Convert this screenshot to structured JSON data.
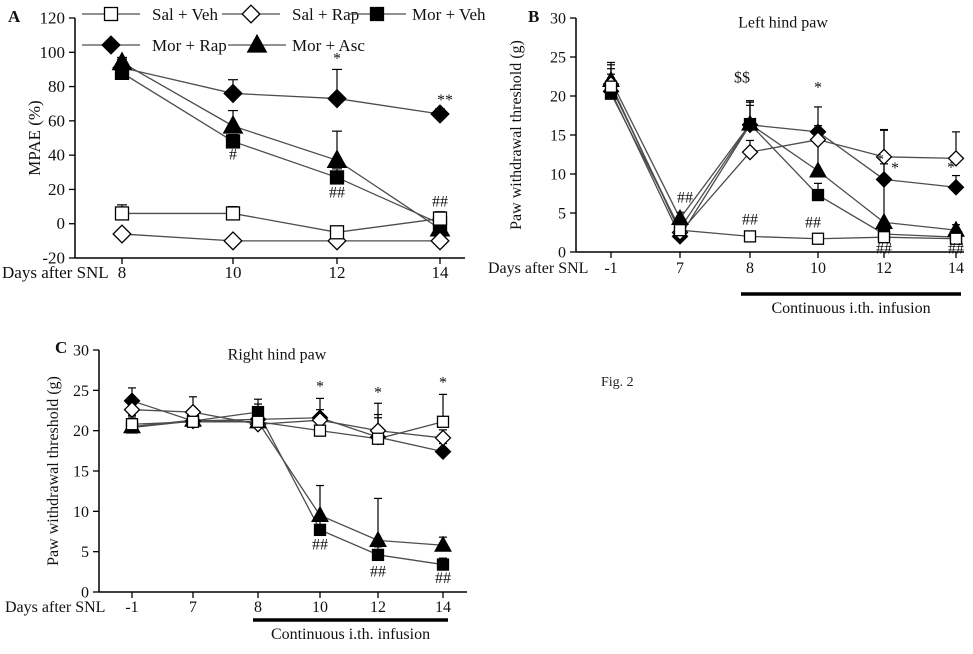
{
  "figure_label": "Fig. 2",
  "colors": {
    "axis": "#000000",
    "line": "#4d4d4d",
    "marker_fill": "#000000",
    "marker_open": "#ffffff",
    "text": "#111111"
  },
  "legend": {
    "rows": [
      [
        {
          "marker": "square-open",
          "label": "Sal + Veh"
        },
        {
          "marker": "diamond-open",
          "label": "Sal + Rap"
        },
        {
          "marker": "square-filled",
          "label": "Mor + Veh"
        }
      ],
      [
        {
          "marker": "diamond-filled",
          "label": "Mor + Rap"
        },
        {
          "marker": "triangle-filled",
          "label": "Mor + Asc"
        }
      ]
    ]
  },
  "chart_data": [
    {
      "id": "A",
      "type": "line",
      "panel_label": "A",
      "title": "",
      "xlabel": "Days after SNL",
      "ylabel": "MPAE (%)",
      "ylim": [
        -20,
        120
      ],
      "ytick_step": 20,
      "grid": false,
      "categories": [
        "8",
        "10",
        "12",
        "14"
      ],
      "series": [
        {
          "name": "Sal + Veh",
          "marker": "square-open",
          "values": [
            6,
            6,
            -5,
            3
          ],
          "err_up": [
            5,
            4,
            2,
            4
          ],
          "err_dn": [
            0,
            0,
            0,
            0
          ]
        },
        {
          "name": "Sal + Rap",
          "marker": "diamond-open",
          "values": [
            -6,
            -10,
            -10,
            -10
          ],
          "err_up": [
            2,
            1,
            1,
            1
          ],
          "err_dn": [
            2,
            0,
            0,
            0
          ]
        },
        {
          "name": "Mor + Veh",
          "marker": "square-filled",
          "values": [
            88,
            48,
            27,
            0
          ],
          "err_up": [
            4,
            4,
            5,
            3
          ],
          "err_dn": [
            0,
            0,
            0,
            0
          ]
        },
        {
          "name": "Mor + Rap",
          "marker": "diamond-filled",
          "values": [
            91,
            76,
            73,
            64
          ],
          "err_up": [
            5,
            8,
            17,
            3
          ],
          "err_dn": [
            0,
            0,
            0,
            0
          ]
        },
        {
          "name": "Mor + Asc",
          "marker": "triangle-filled",
          "values": [
            94,
            57,
            37,
            -3
          ],
          "err_up": [
            3,
            9,
            17,
            0
          ],
          "err_dn": [
            0,
            0,
            0,
            4
          ]
        }
      ],
      "annotations": [
        {
          "text": "*",
          "x": 2,
          "y": 96
        },
        {
          "text": "**",
          "x": 3,
          "y": 72,
          "dx": 5
        },
        {
          "text": "#",
          "x": 1,
          "y": 40
        },
        {
          "text": "##",
          "x": 2,
          "y": 18
        },
        {
          "text": "##",
          "x": 3,
          "y": 12.7
        }
      ]
    },
    {
      "id": "B",
      "type": "line",
      "panel_label": "B",
      "title": "Left hind paw",
      "xlabel": "Days after SNL",
      "ylabel": "Paw withdrawal threshold  (g)",
      "ylim": [
        0,
        30
      ],
      "ytick_step": 5,
      "grid": false,
      "categories": [
        "-1",
        "7",
        "8",
        "10",
        "12",
        "14"
      ],
      "series": [
        {
          "name": "Sal + Veh",
          "marker": "square-open",
          "values": [
            21.2,
            2.8,
            2.0,
            1.7,
            1.9,
            1.7
          ],
          "err_up": [
            2.3,
            0.6,
            0.4,
            0.4,
            0.4,
            0.4
          ],
          "err_dn": [
            0,
            0,
            0,
            0,
            0,
            0
          ]
        },
        {
          "name": "Sal + Rap",
          "marker": "diamond-open",
          "values": [
            21.5,
            2.5,
            12.8,
            14.4,
            12.2,
            12.0
          ],
          "err_up": [
            2.5,
            0.5,
            1.5,
            1.8,
            3.5,
            3.4
          ],
          "err_dn": [
            0,
            0,
            0,
            0,
            0,
            0
          ]
        },
        {
          "name": "Mor + Veh",
          "marker": "square-filled",
          "values": [
            20.3,
            3.0,
            16.4,
            7.3,
            2.3,
            1.9
          ],
          "err_up": [
            2.0,
            0.6,
            3.0,
            1.5,
            0.6,
            0.5
          ],
          "err_dn": [
            0,
            0,
            0,
            0,
            0,
            0
          ]
        },
        {
          "name": "Mor + Rap",
          "marker": "diamond-filled",
          "values": [
            20.6,
            2.0,
            16.3,
            15.4,
            9.3,
            8.3
          ],
          "err_up": [
            2.2,
            0.4,
            2.5,
            3.2,
            2.0,
            1.5
          ],
          "err_dn": [
            0,
            0,
            0,
            0,
            0,
            0
          ]
        },
        {
          "name": "Mor + Asc",
          "marker": "triangle-filled",
          "values": [
            22.0,
            4.3,
            16.4,
            10.4,
            3.8,
            2.8
          ],
          "err_up": [
            2.3,
            0.8,
            2.8,
            4.0,
            11.8,
            0.7
          ],
          "err_dn": [
            0,
            0,
            0,
            0,
            0,
            0
          ]
        }
      ],
      "annotations": [
        {
          "text": "##",
          "x": 1,
          "y": 6.9,
          "dx": 5
        },
        {
          "text": "$$",
          "x": 2,
          "y": 22.3,
          "dx": -8
        },
        {
          "text": "##",
          "x": 2,
          "y": 4.1
        },
        {
          "text": "*",
          "x": 3,
          "y": 21.0
        },
        {
          "text": "##",
          "x": 3,
          "y": 3.7,
          "dx": -5
        },
        {
          "text": "*",
          "x": 4,
          "y": 11.8,
          "dx": -4
        },
        {
          "text": "*",
          "x": 4,
          "y": 10.7,
          "dx": 11
        },
        {
          "text": "##",
          "x": 4,
          "y": 0.4
        },
        {
          "text": "*",
          "x": 5,
          "y": 10.8,
          "dx": -5
        },
        {
          "text": "##",
          "x": 5,
          "y": 0.4
        }
      ],
      "infusion": {
        "from": 2,
        "to": 5,
        "label": "Continuous  i.th.  infusion"
      }
    },
    {
      "id": "C",
      "type": "line",
      "panel_label": "C",
      "title": "Right  hind  paw",
      "xlabel": "Days after SNL",
      "ylabel": "Paw withdrawal  threshold  (g)",
      "ylim": [
        0,
        30
      ],
      "ytick_step": 5,
      "grid": false,
      "categories": [
        "-1",
        "7",
        "8",
        "10",
        "12",
        "14"
      ],
      "series": [
        {
          "name": "Sal + Veh",
          "marker": "square-open",
          "values": [
            20.8,
            21.1,
            21.1,
            20.0,
            19.0,
            21.1
          ],
          "err_up": [
            0.9,
            1.0,
            2.2,
            1.5,
            2.6,
            3.4
          ],
          "err_dn": [
            0,
            0,
            0,
            0,
            0,
            0
          ]
        },
        {
          "name": "Sal + Rap",
          "marker": "diamond-open",
          "values": [
            22.6,
            22.3,
            20.8,
            21.3,
            20.0,
            19.1
          ],
          "err_up": [
            1.6,
            1.9,
            1.0,
            1.3,
            3.4,
            1.0
          ],
          "err_dn": [
            0,
            0,
            0,
            0,
            0,
            0
          ]
        },
        {
          "name": "Mor + Veh",
          "marker": "square-filled",
          "values": [
            20.4,
            21.2,
            22.3,
            7.7,
            4.6,
            3.4
          ],
          "err_up": [
            1.5,
            1.2,
            1.6,
            1.5,
            1.0,
            0.8
          ],
          "err_dn": [
            0,
            0,
            0,
            0,
            0,
            0
          ]
        },
        {
          "name": "Mor + Rap",
          "marker": "diamond-filled",
          "values": [
            23.7,
            21.2,
            21.4,
            21.6,
            19.2,
            17.4
          ],
          "err_up": [
            1.6,
            1.6,
            1.5,
            2.4,
            2.8,
            1.0
          ],
          "err_dn": [
            0,
            0,
            0,
            0,
            0,
            0
          ]
        },
        {
          "name": "Mor + Asc",
          "marker": "triangle-filled",
          "values": [
            20.5,
            21.3,
            21.1,
            9.5,
            6.4,
            5.8
          ],
          "err_up": [
            1.0,
            1.2,
            1.8,
            3.7,
            5.2,
            1.0
          ],
          "err_dn": [
            0,
            0,
            0,
            0,
            0,
            0
          ]
        }
      ],
      "annotations": [
        {
          "text": "*",
          "x": 3,
          "y": 25.4
        },
        {
          "text": "*",
          "x": 4,
          "y": 24.7
        },
        {
          "text": "*",
          "x": 5,
          "y": 25.9
        },
        {
          "text": "##",
          "x": 3,
          "y": 5.8
        },
        {
          "text": "##",
          "x": 4,
          "y": 2.5
        },
        {
          "text": "##",
          "x": 5,
          "y": 1.7
        }
      ],
      "infusion": {
        "from": 2,
        "to": 5,
        "label": "Continuous  i.th.  infusion"
      }
    }
  ]
}
